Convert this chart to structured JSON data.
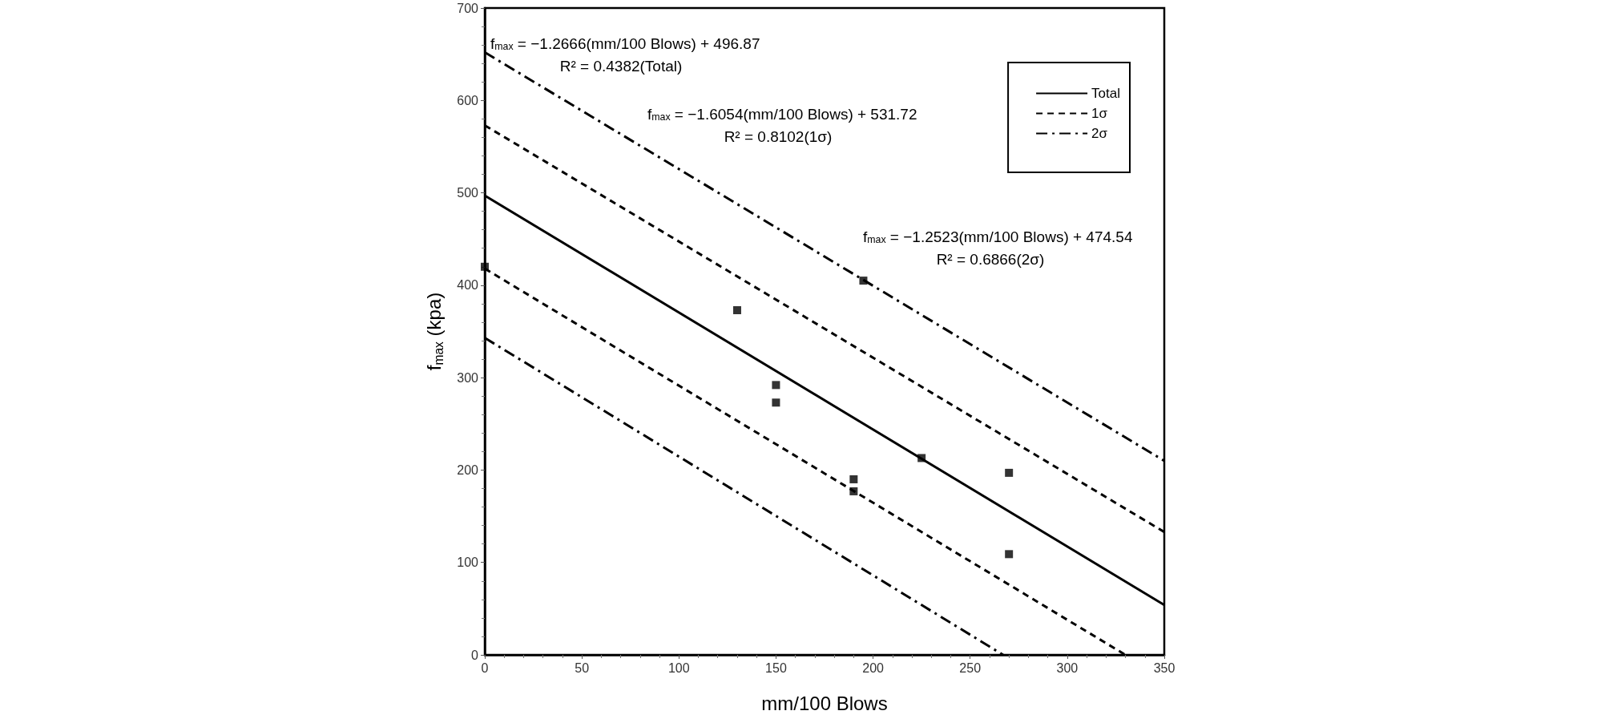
{
  "chart_data": {
    "type": "scatter",
    "xlabel": "mm/100 Blows",
    "ylabel": "f$_{max}$ (kpa)",
    "xlim": [
      0,
      350
    ],
    "xticks": [
      0,
      50,
      100,
      150,
      200,
      250,
      300,
      350
    ],
    "ylim": [
      0,
      700
    ],
    "yticks": [
      0,
      100,
      200,
      300,
      400,
      500,
      600,
      700
    ],
    "legend": "top right",
    "marker": "square",
    "annotations": [
      "f$_{max}$ = −1.2666(mm/100 Blows) + 496.87",
      "R² = 0.4382(Total)",
      "f$_{max}$ = −1.6054(mm/100 Blows) + 531.72",
      "R² = 0.8102(1σ)",
      "f$_{max}$ = −1.2523(mm/100 Blows) + 474.54",
      "R² = 0.6866(2σ)"
    ],
    "series": [
      {
        "color": "#000000",
        "x": [
          0,
          130,
          150,
          150,
          190,
          190,
          195,
          225,
          270,
          270
        ],
        "values": [
          420,
          373,
          292,
          273,
          190,
          177,
          405,
          213,
          197,
          109
        ]
      },
      {
        "type": "line",
        "name": "Total",
        "color": "#000000",
        "line_style": "solid",
        "marker": "none",
        "x": [
          0,
          350
        ],
        "values": [
          497,
          54
        ]
      },
      {
        "type": "line",
        "name": "1σ",
        "color": "#000000",
        "line_style": "dashed",
        "marker": "none",
        "x": [
          0,
          350
        ],
        "values": [
          573,
          133
        ]
      },
      {
        "type": "line",
        "color": "#000000",
        "line_style": "dashed",
        "marker": "none",
        "x": [
          0,
          330
        ],
        "values": [
          418,
          0
        ]
      },
      {
        "type": "line",
        "name": "2σ",
        "color": "#000000",
        "line_style": "dashdot",
        "marker": "none",
        "x": [
          0,
          350
        ],
        "values": [
          652,
          210
        ]
      },
      {
        "type": "line",
        "color": "#000000",
        "line_style": "dashdot",
        "marker": "none",
        "x": [
          0,
          267
        ],
        "values": [
          343,
          0
        ]
      }
    ]
  }
}
